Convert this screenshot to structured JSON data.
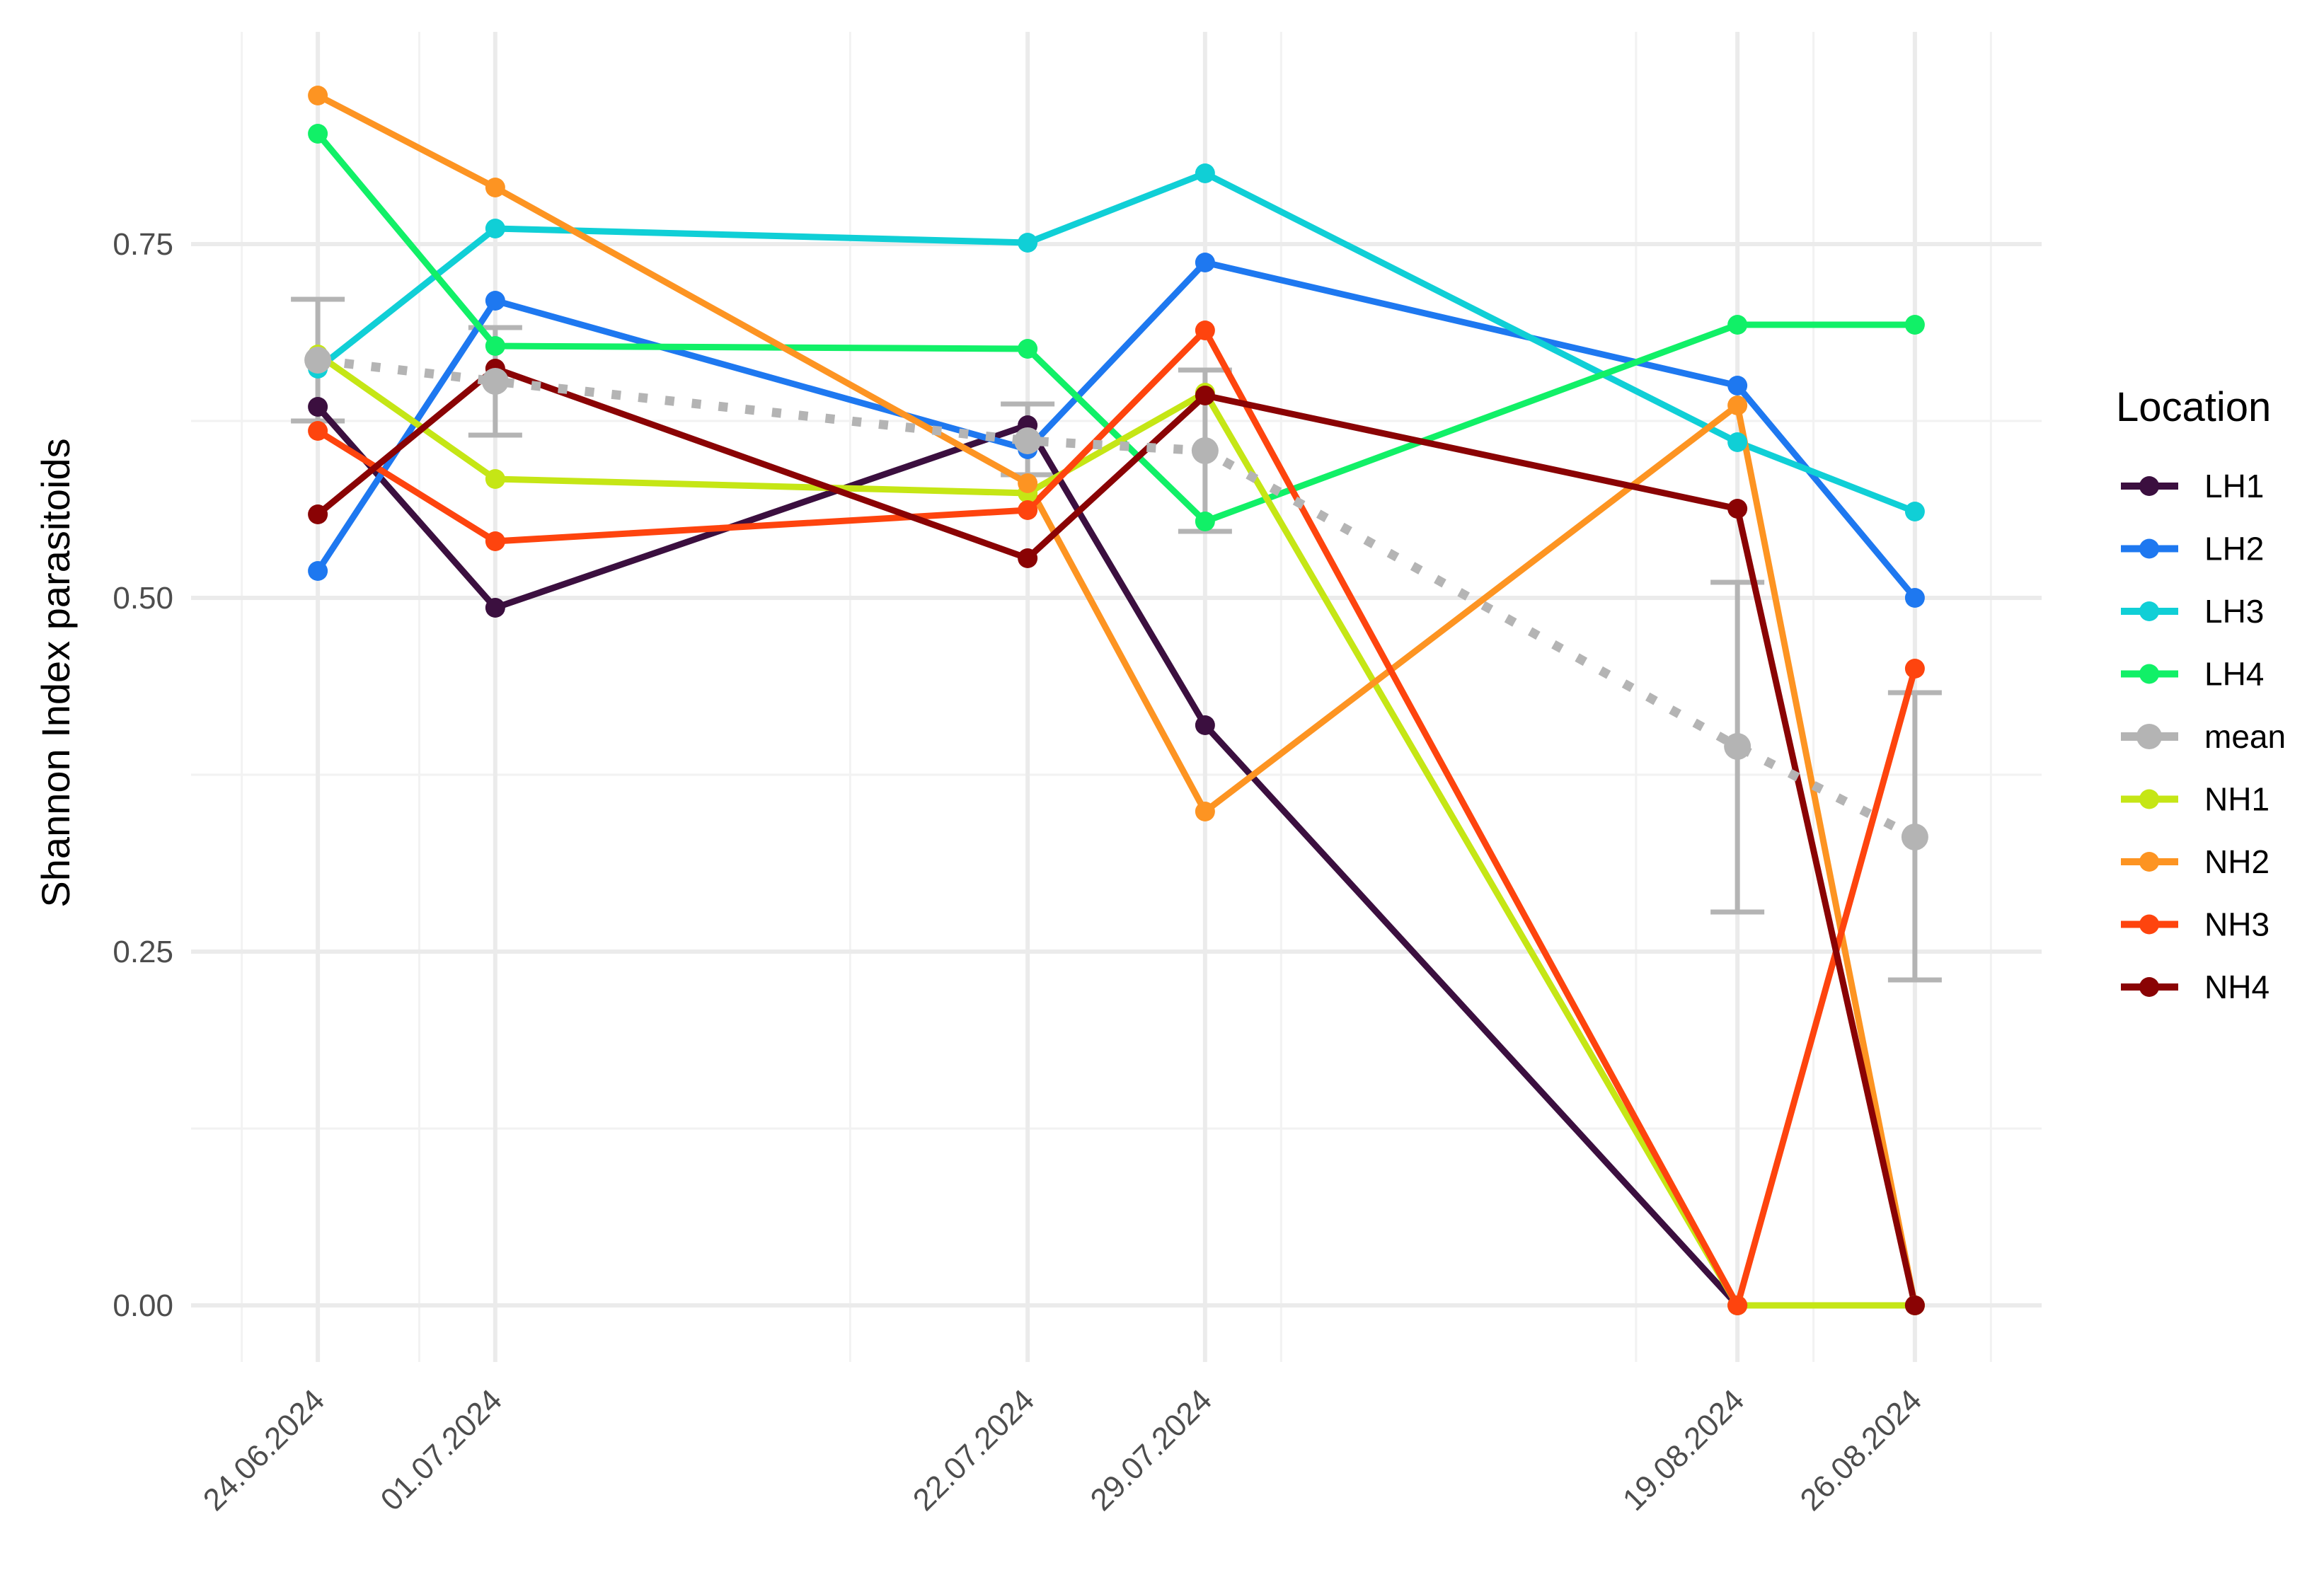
{
  "chart_data": {
    "type": "line",
    "title": "",
    "xlabel": "",
    "ylabel": "Shannon Index parasitoids",
    "x": [
      "24.06.2024",
      "01.07.2024",
      "22.07.2024",
      "29.07.2024",
      "19.08.2024",
      "26.08.2024"
    ],
    "x_dates": [
      "2024-06-24",
      "2024-07-01",
      "2024-07-22",
      "2024-07-29",
      "2024-08-19",
      "2024-08-26"
    ],
    "x_range": [
      "2024-06-19",
      "2024-08-31"
    ],
    "ylim": [
      -0.04,
      0.9
    ],
    "y_ticks": [
      {
        "value": 0.0,
        "label": "0.00"
      },
      {
        "value": 0.25,
        "label": "0.25"
      },
      {
        "value": 0.5,
        "label": "0.50"
      },
      {
        "value": 0.75,
        "label": "0.75"
      }
    ],
    "y_minor_ticks": [
      0.125,
      0.375,
      0.625
    ],
    "x_minor_ticks": [
      "2024-06-21",
      "2024-06-28",
      "2024-07-15",
      "2024-08-01",
      "2024-08-15",
      "2024-08-22",
      "2024-08-29"
    ],
    "grid": true,
    "legend": {
      "title": "Location",
      "position": "right"
    },
    "series": [
      {
        "name": "LH1",
        "color": "#3b0f3f",
        "values": [
          0.635,
          0.493,
          0.622,
          0.41,
          0.0,
          0.0
        ]
      },
      {
        "name": "LH2",
        "color": "#1e78f0",
        "values": [
          0.519,
          0.71,
          0.605,
          0.737,
          0.65,
          0.5
        ]
      },
      {
        "name": "LH3",
        "color": "#10cfd6",
        "values": [
          0.662,
          0.761,
          0.751,
          0.8,
          0.61,
          0.561
        ]
      },
      {
        "name": "LH4",
        "color": "#11f067",
        "values": [
          0.828,
          0.678,
          0.676,
          0.554,
          0.693,
          0.693
        ]
      },
      {
        "name": "mean",
        "color": "#b4b4b4",
        "dotted": true,
        "values": [
          0.668,
          0.653,
          0.611,
          0.604,
          0.395,
          0.331
        ],
        "errors": [
          [
            0.625,
            0.711
          ],
          [
            0.615,
            0.691
          ],
          [
            0.587,
            0.637
          ],
          [
            0.547,
            0.661
          ],
          [
            0.278,
            0.511
          ],
          [
            0.23,
            0.433
          ]
        ]
      },
      {
        "name": "NH1",
        "color": "#c5e615",
        "values": [
          0.672,
          0.584,
          0.574,
          0.645,
          0.0,
          0.0
        ]
      },
      {
        "name": "NH2",
        "color": "#fd9422",
        "values": [
          0.855,
          0.79,
          0.581,
          0.349,
          0.636,
          0.0
        ]
      },
      {
        "name": "NH3",
        "color": "#fe440e",
        "values": [
          0.618,
          0.54,
          0.562,
          0.689,
          0.0,
          0.45
        ]
      },
      {
        "name": "NH4",
        "color": "#8a0304",
        "values": [
          0.559,
          0.662,
          0.528,
          0.643,
          0.563,
          0.0
        ]
      }
    ]
  }
}
